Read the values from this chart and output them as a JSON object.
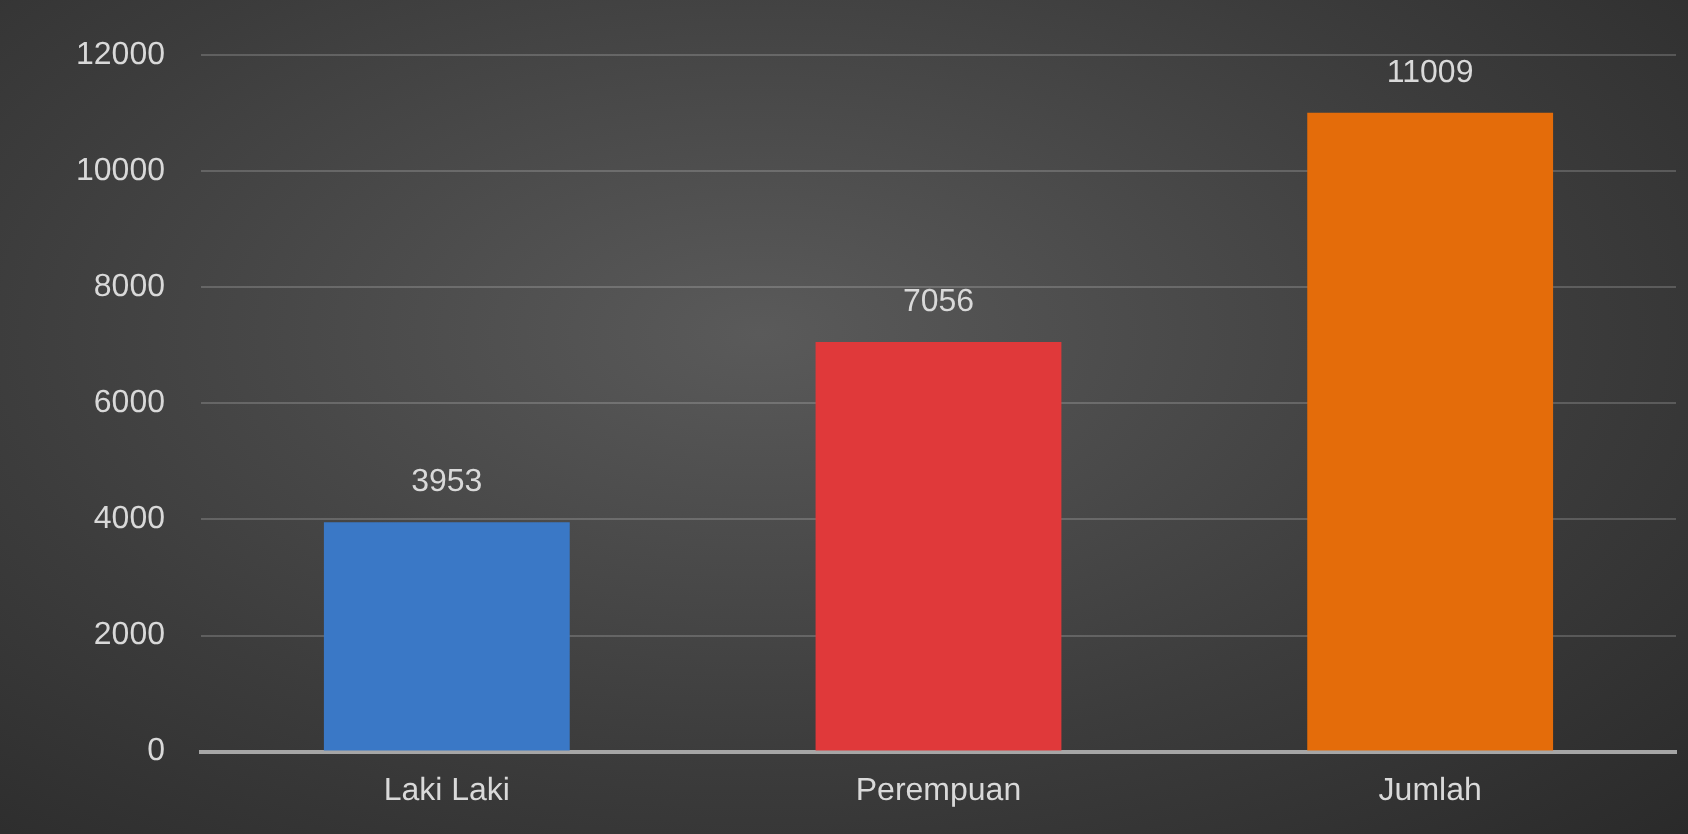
{
  "chart_data": {
    "type": "bar",
    "categories": [
      "Laki Laki",
      "Perempuan",
      "Jumlah"
    ],
    "values": [
      3953,
      7056,
      11009
    ],
    "colors": [
      "#3a78c6",
      "#e0393a",
      "#e46c0a"
    ],
    "ylim": [
      0,
      12000
    ],
    "yticks": [
      0,
      2000,
      4000,
      6000,
      8000,
      10000,
      12000
    ],
    "grid": "y",
    "data_labels": true,
    "legend": false
  }
}
